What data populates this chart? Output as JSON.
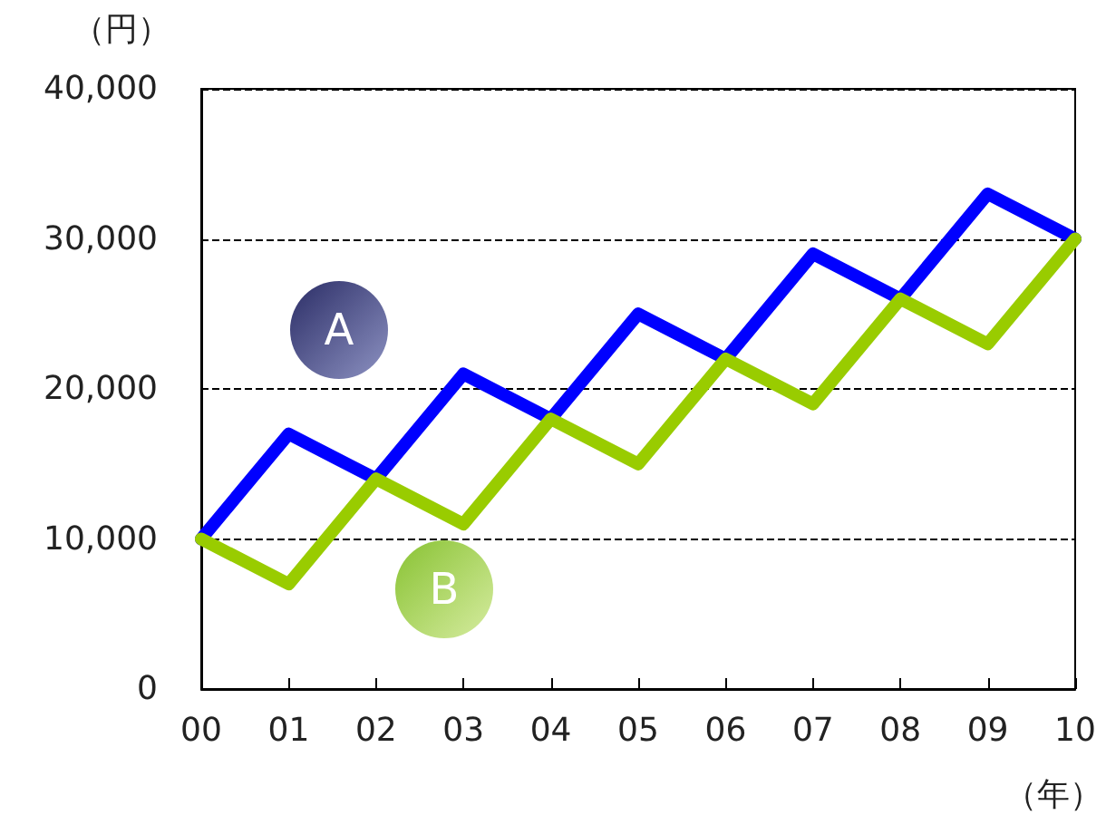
{
  "chart_data": {
    "type": "line",
    "ylabel": "（円）",
    "xlabel": "（年）",
    "categories": [
      "00",
      "01",
      "02",
      "03",
      "04",
      "05",
      "06",
      "07",
      "08",
      "09",
      "10"
    ],
    "series": [
      {
        "name": "A",
        "color": "#0000ff",
        "values": [
          10000,
          17000,
          14000,
          21000,
          18000,
          25000,
          22000,
          29000,
          26000,
          33000,
          30000
        ]
      },
      {
        "name": "B",
        "color": "#99cc00",
        "values": [
          10000,
          7000,
          14000,
          11000,
          18000,
          15000,
          22000,
          19000,
          26000,
          23000,
          30000
        ]
      }
    ],
    "ylim": [
      0,
      40000
    ],
    "yticks": [
      0,
      {
        "value": 10000,
        "label": "10,000"
      },
      {
        "value": 20000,
        "label": "20,000"
      },
      {
        "value": 30000,
        "label": "30,000"
      },
      {
        "value": 40000,
        "label": "40,000"
      }
    ],
    "grid": "y",
    "marker": "none",
    "line_style": "solid",
    "legend": false
  }
}
